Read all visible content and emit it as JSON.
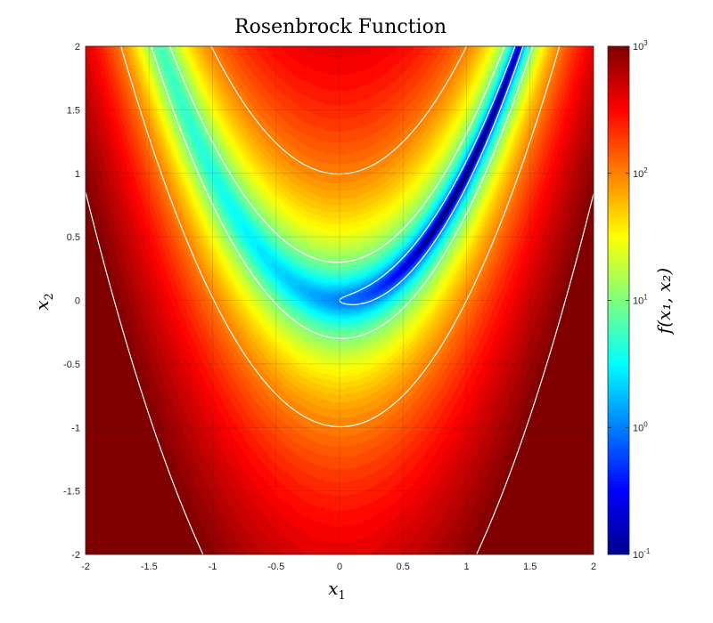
{
  "chart_data": {
    "type": "heatmap",
    "title": "Rosenbrock Function",
    "xlabel": "x",
    "xlabel_sub": "1",
    "ylabel": "x",
    "ylabel_sub": "2",
    "colorbar_label": "f(x₁, x₂)",
    "function": "f(x1,x2) = 100*(x2 - x1^2)^2 + (1 - x1)^2",
    "colormap": "jet",
    "color_scale": "log",
    "xlim": [
      -2,
      2
    ],
    "ylim": [
      -2,
      2
    ],
    "clim": [
      0.1,
      1000
    ],
    "grid": true,
    "x_ticks": [
      "-2",
      "-1.5",
      "-1",
      "-0.5",
      "0",
      "0.5",
      "1",
      "1.5",
      "2"
    ],
    "y_ticks": [
      "-2",
      "-1.5",
      "-1",
      "-0.5",
      "0",
      "0.5",
      "1",
      "1.5",
      "2"
    ],
    "colorbar_ticks": [
      {
        "base": "10",
        "exp": "-1"
      },
      {
        "base": "10",
        "exp": "0"
      },
      {
        "base": "10",
        "exp": "1"
      },
      {
        "base": "10",
        "exp": "2"
      },
      {
        "base": "10",
        "exp": "3"
      }
    ],
    "contour_levels": [
      1,
      10,
      100,
      1000
    ],
    "contour_color": "#ffffff"
  }
}
